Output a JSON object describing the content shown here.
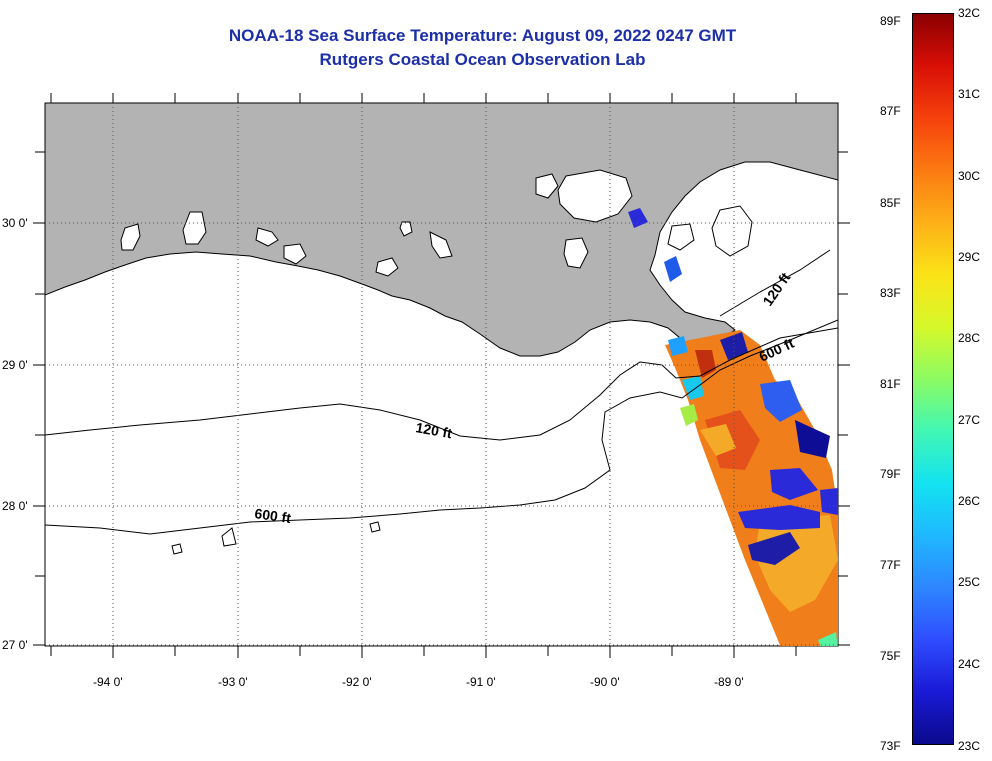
{
  "title": {
    "line1": "NOAA-18 Sea Surface Temperature:  August 09, 2022 0247 GMT",
    "line2": "Rutgers Coastal Ocean Observation Lab"
  },
  "map": {
    "lat_labels": [
      "30 0'",
      "29 0'",
      "28 0'",
      "27 0'"
    ],
    "lon_labels": [
      "-94 0'",
      "-93 0'",
      "-92 0'",
      "-91 0'",
      "-90 0'",
      "-89 0'"
    ],
    "contours": {
      "c120_west": "120 ft",
      "c600_west": "600 ft",
      "c120_east": "120 ft",
      "c600_east": "600 ft"
    },
    "colors": {
      "land": "#b3b3b3",
      "water": "#ffffff",
      "contour": "#000000"
    }
  },
  "colorbar": {
    "fahrenheit": [
      "89F",
      "87F",
      "85F",
      "83F",
      "81F",
      "79F",
      "77F",
      "75F",
      "73F"
    ],
    "celsius": [
      "32C",
      "31C",
      "30C",
      "29C",
      "28C",
      "27C",
      "26C",
      "25C",
      "24C",
      "23C"
    ],
    "palette": [
      "#0a0a8c",
      "#1a1ad6",
      "#2f4dff",
      "#2e86ff",
      "#1fb8ff",
      "#13e3f0",
      "#41f7b4",
      "#8cfb62",
      "#d6f82a",
      "#fbe317",
      "#fdb017",
      "#fc7a12",
      "#f6410c",
      "#d80f07",
      "#8b0000"
    ]
  }
}
